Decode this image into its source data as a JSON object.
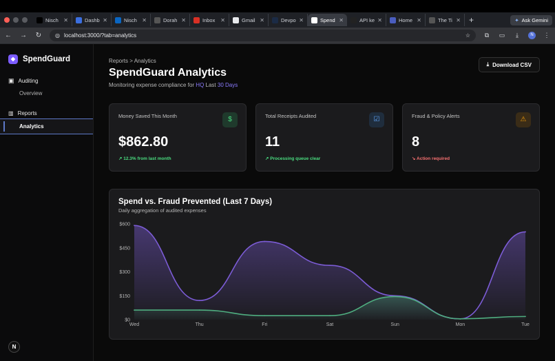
{
  "browser": {
    "tabs": [
      {
        "label": "Nisch",
        "icon": "x-logo-icon",
        "color": "#000000"
      },
      {
        "label": "Dashb",
        "icon": "dashboard-icon",
        "color": "#3b6fe0"
      },
      {
        "label": "Nisch",
        "icon": "linkedin-icon",
        "color": "#0a66c2"
      },
      {
        "label": "Dorah",
        "icon": "notion-icon",
        "color": "#555555"
      },
      {
        "label": "Inbox",
        "icon": "gmail-icon",
        "color": "#d93025"
      },
      {
        "label": "Gmail",
        "icon": "google-icon",
        "color": "#e8eaed"
      },
      {
        "label": "Devpo",
        "icon": "devpost-icon",
        "color": "#1b2b45"
      },
      {
        "label": "Spend",
        "icon": "spendguard-tab-icon",
        "color": "#ffffff",
        "active": true
      },
      {
        "label": "API ke",
        "icon": "github-icon",
        "color": "#222222"
      },
      {
        "label": "Home",
        "icon": "home-icon",
        "color": "#4a5dbe"
      },
      {
        "label": "The Ti",
        "icon": "notion-icon",
        "color": "#555555"
      }
    ],
    "new_tab": "+",
    "gemini_label": "Ask Gemini",
    "url": "localhost:3000/?tab=analytics",
    "avatar_letter": "N"
  },
  "sidebar": {
    "brand": "SpendGuard",
    "groups": [
      {
        "label": "Auditing",
        "items": [
          "Overview"
        ]
      },
      {
        "label": "Reports",
        "items": [
          "Analytics"
        ]
      }
    ],
    "badge": "N"
  },
  "header": {
    "breadcrumb": "Reports > Analytics",
    "title": "SpendGuard Analytics",
    "subtitle_prefix": "Monitoring expense compliance for ",
    "subtitle_scope": "HQ",
    "subtitle_mid": " Last ",
    "subtitle_period": "30 Days",
    "download_label": "Download CSV"
  },
  "cards": [
    {
      "label": "Money Saved This Month",
      "value": "$862.80",
      "note": "↗ 12.3% from last month",
      "note_color": "#4ade80",
      "icon": "dollar-icon",
      "icon_color": "#4ade80",
      "icon_bg": "#1f3a2c"
    },
    {
      "label": "Total Receipts Audited",
      "value": "11",
      "note": "↗ Processing queue clear",
      "note_color": "#4ade80",
      "icon": "check-square-icon",
      "icon_color": "#60a5fa",
      "icon_bg": "#1f2d3d"
    },
    {
      "label": "Fraud & Policy Alerts",
      "value": "8",
      "note": "↘ Action required",
      "note_color": "#f87171",
      "icon": "warning-icon",
      "icon_color": "#f59e0b",
      "icon_bg": "#3a2c17"
    }
  ],
  "chart_data": {
    "type": "area",
    "title": "Spend vs. Fraud Prevented (Last 7 Days)",
    "subtitle": "Daily aggregation of audited expenses",
    "categories": [
      "Wed",
      "Thu",
      "Fri",
      "Sat",
      "Sun",
      "Mon",
      "Tue"
    ],
    "yticks": [
      "$0",
      "$150",
      "$300",
      "$450",
      "$600"
    ],
    "ylim": [
      0,
      600
    ],
    "series": [
      {
        "values": [
          590,
          120,
          490,
          340,
          150,
          5,
          550
        ],
        "color": "#7c5cd6"
      },
      {
        "values": [
          60,
          60,
          25,
          25,
          145,
          5,
          20
        ],
        "color": "#4fae80"
      }
    ],
    "grid": false
  }
}
